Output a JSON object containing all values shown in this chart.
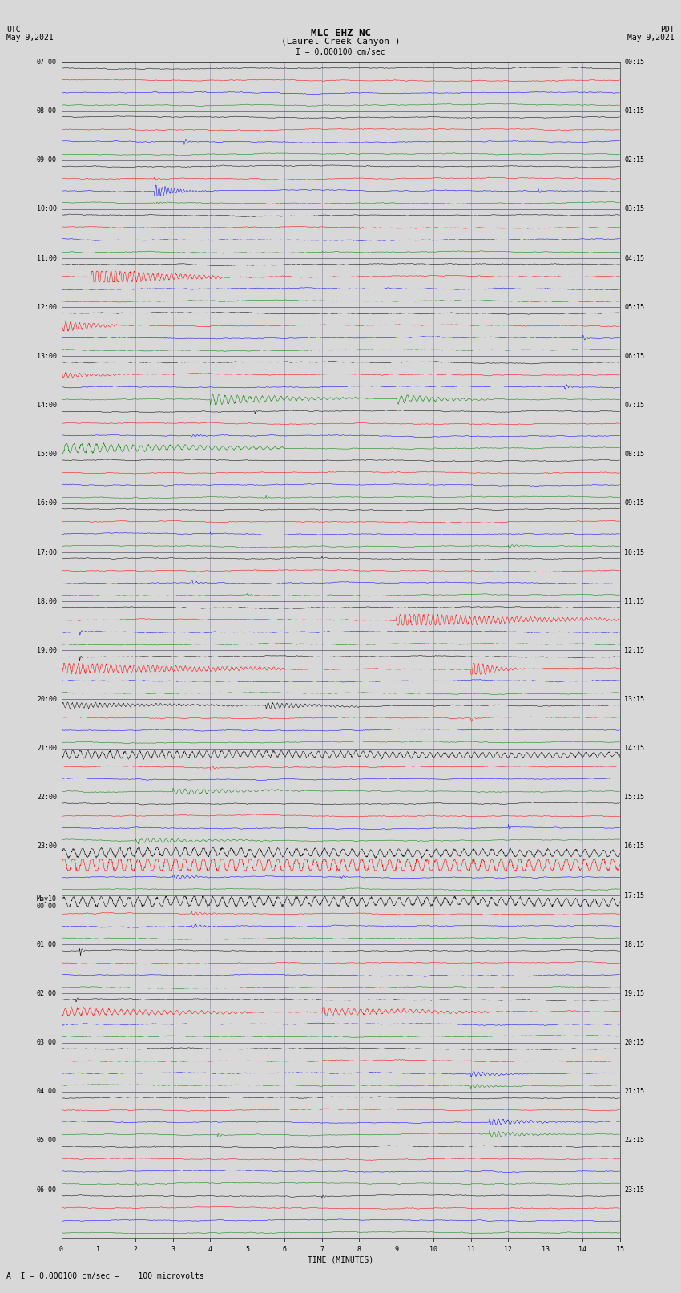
{
  "title_line1": "MLC EHZ NC",
  "title_line2": "(Laurel Creek Canyon )",
  "scale_label": "I = 0.000100 cm/sec",
  "left_header_line1": "UTC",
  "left_header_line2": "May 9,2021",
  "right_header_line1": "PDT",
  "right_header_line2": "May 9,2021",
  "xlabel": "TIME (MINUTES)",
  "bottom_note": "A  I = 0.000100 cm/sec =    100 microvolts",
  "utc_labels": [
    "07:00",
    "08:00",
    "09:00",
    "10:00",
    "11:00",
    "12:00",
    "13:00",
    "14:00",
    "15:00",
    "16:00",
    "17:00",
    "18:00",
    "19:00",
    "20:00",
    "21:00",
    "22:00",
    "23:00",
    "May10\n00:00",
    "01:00",
    "02:00",
    "03:00",
    "04:00",
    "05:00",
    "06:00"
  ],
  "pdt_labels": [
    "00:15",
    "01:15",
    "02:15",
    "03:15",
    "04:15",
    "05:15",
    "06:15",
    "07:15",
    "08:15",
    "09:15",
    "10:15",
    "11:15",
    "12:15",
    "13:15",
    "14:15",
    "15:15",
    "16:15",
    "17:15",
    "18:15",
    "19:15",
    "20:15",
    "21:15",
    "22:15",
    "23:15"
  ],
  "num_groups": 24,
  "traces_per_group": 4,
  "colors_cycle": [
    "black",
    "red",
    "blue",
    "green"
  ],
  "background_color": "#d8d8d8",
  "grid_color": "#8888aa",
  "xmin": 0,
  "xmax": 15,
  "fig_width": 8.5,
  "fig_height": 16.13,
  "dpi": 100,
  "noise_base": 0.04,
  "font_size_title": 8,
  "font_size_labels": 7,
  "font_size_ticks": 6,
  "font_size_bottom": 7
}
